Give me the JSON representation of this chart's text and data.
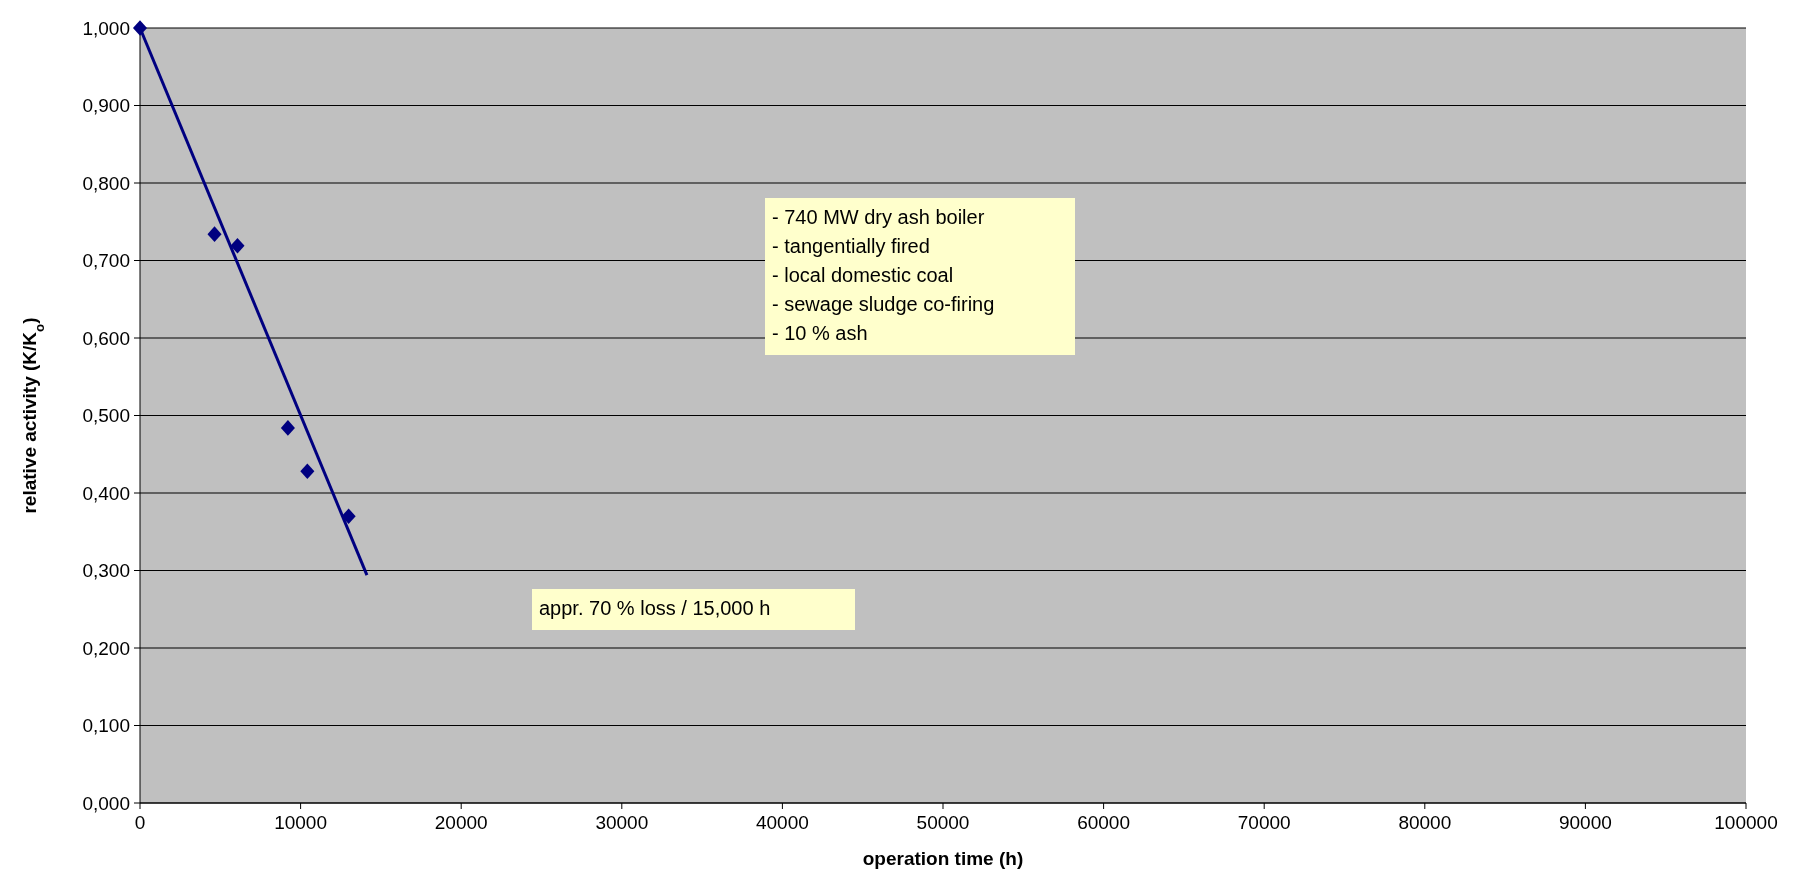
{
  "chart_data": {
    "type": "scatter",
    "xlabel": "operation time (h)",
    "ylabel": "relative activity (K/K$_{o}$)",
    "xlim": [
      0,
      100000
    ],
    "xticks": [
      0,
      10000,
      20000,
      30000,
      40000,
      50000,
      60000,
      70000,
      80000,
      90000,
      100000
    ],
    "ylim": [
      0,
      1
    ],
    "yticks": [
      {
        "value": 0,
        "label": "0,000"
      },
      {
        "value": 0.1,
        "label": "0,100"
      },
      {
        "value": 0.2,
        "label": "0,200"
      },
      {
        "value": 0.3,
        "label": "0,300"
      },
      {
        "value": 0.4,
        "label": "0,400"
      },
      {
        "value": 0.5,
        "label": "0,500"
      },
      {
        "value": 0.6,
        "label": "0,600"
      },
      {
        "value": 0.7,
        "label": "0,700"
      },
      {
        "value": 0.8,
        "label": "0,800"
      },
      {
        "value": 0.9,
        "label": "0,900"
      },
      {
        "value": 1,
        "label": "1,000"
      }
    ],
    "grid": "y",
    "series": [
      {
        "marker": "diamond",
        "color": "#000080",
        "x": [
          0,
          4640,
          6070,
          9210,
          10420,
          12990
        ],
        "values": [
          1.0,
          0.734,
          0.719,
          0.484,
          0.428,
          0.37
        ]
      },
      {
        "type": "line",
        "color": "#000080",
        "x": [
          0,
          14130
        ],
        "values": [
          1.0,
          0.294
        ]
      }
    ],
    "annotations": [
      "- 740 MW dry ash boiler\n- tangentially fired\n- local domestic coal\n- sewage sludge co-firing\n- 10 % ash",
      "appr. 70 % loss / 15,000 h"
    ]
  }
}
